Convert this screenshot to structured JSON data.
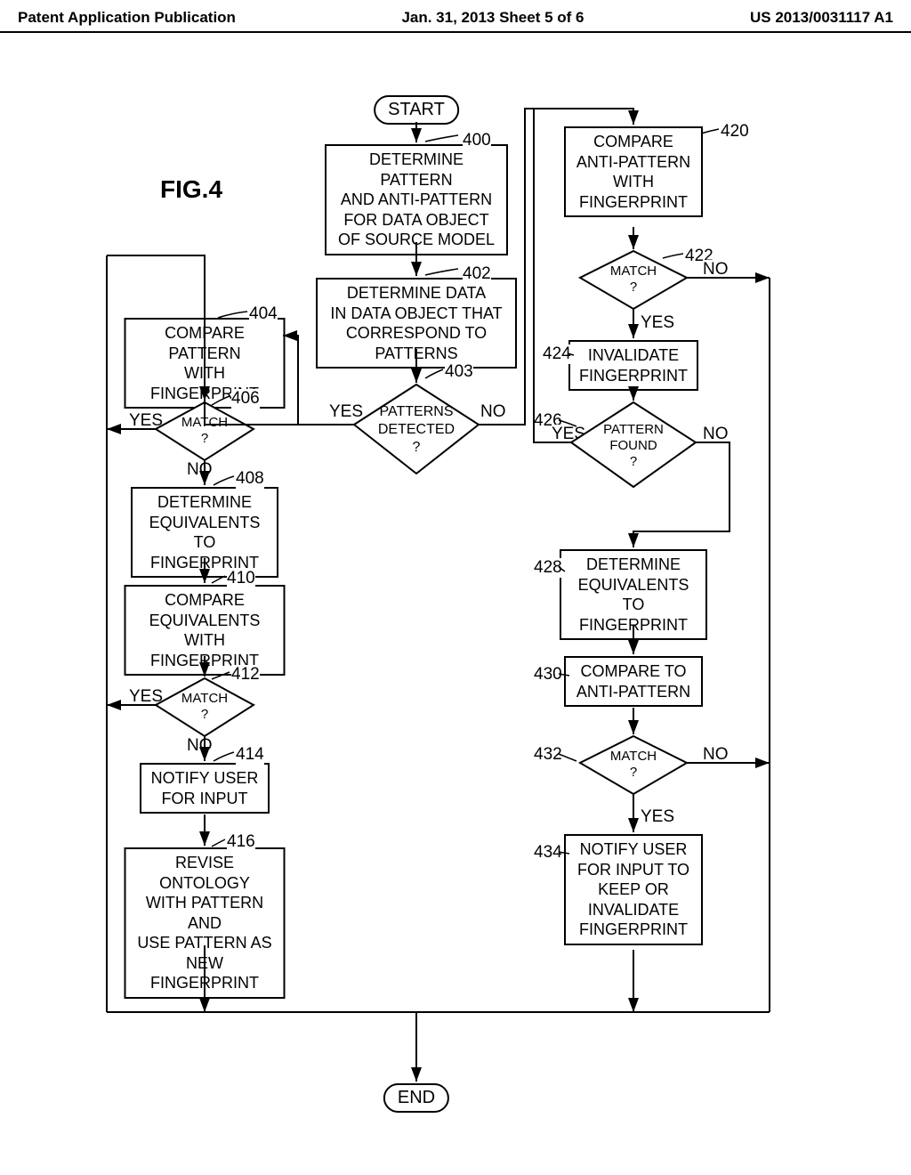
{
  "header": {
    "left": "Patent Application Publication",
    "center": "Jan. 31, 2013  Sheet 5 of 6",
    "right": "US 2013/0031117 A1"
  },
  "figure_label": "FIG.4",
  "terminals": {
    "start": "START",
    "end": "END"
  },
  "boxes": {
    "b400": "DETERMINE PATTERN\nAND ANTI-PATTERN\nFOR DATA OBJECT\nOF SOURCE MODEL",
    "b402": "DETERMINE DATA\nIN DATA OBJECT THAT\nCORRESPOND TO PATTERNS",
    "b404": "COMPARE PATTERN\nWITH FINGERPRINT",
    "b408": "DETERMINE\nEQUIVALENTS\nTO FINGERPRINT",
    "b410": "COMPARE\nEQUIVALENTS\nWITH FINGERPRINT",
    "b414": "NOTIFY USER\nFOR INPUT",
    "b416": "REVISE ONTOLOGY\nWITH PATTERN AND\nUSE PATTERN AS\nNEW FINGERPRINT",
    "b420": "COMPARE\nANTI-PATTERN\nWITH\nFINGERPRINT",
    "b424": "INVALIDATE\nFINGERPRINT",
    "b428": "DETERMINE\nEQUIVALENTS\nTO FINGERPRINT",
    "b430": "COMPARE TO\nANTI-PATTERN",
    "b434": "NOTIFY USER\nFOR INPUT TO\nKEEP OR\nINVALIDATE\nFINGERPRINT"
  },
  "diamonds": {
    "d403": "PATTERNS\nDETECTED\n?",
    "d406": "MATCH\n?",
    "d412": "MATCH\n?",
    "d422": "MATCH\n?",
    "d426": "PATTERN\nFOUND\n?",
    "d432": "MATCH\n?"
  },
  "refs": {
    "r400": "400",
    "r402": "402",
    "r403": "403",
    "r404": "404",
    "r406": "406",
    "r408": "408",
    "r410": "410",
    "r412": "412",
    "r414": "414",
    "r416": "416",
    "r420": "420",
    "r422": "422",
    "r424": "424",
    "r426": "426",
    "r428": "428",
    "r430": "430",
    "r432": "432",
    "r434": "434"
  },
  "branch": {
    "yes": "YES",
    "no": "NO"
  },
  "style": {
    "stroke": "#000000",
    "stroke_width": 2,
    "bg": "#ffffff",
    "font_main": 18,
    "font_header": 17,
    "font_fig": 28
  }
}
